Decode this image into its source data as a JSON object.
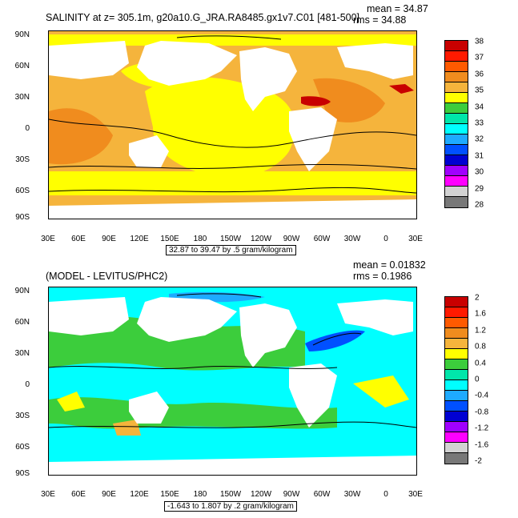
{
  "top": {
    "title": "SALINITY at z= 305.1m, g20a10.G_JRA.RA8485.gx1v7.C01 [481-500]",
    "mean": "mean = 34.87",
    "rms": "rms = 34.88",
    "caption": "32.87 to 39.47 by .5 gram/kilogram",
    "colorbar": {
      "labels": [
        "38",
        "37",
        "36",
        "35",
        "34",
        "33",
        "32",
        "31",
        "30",
        "29",
        "28"
      ],
      "colors": [
        "#c80000",
        "#ff1a00",
        "#ff5a00",
        "#f08c1e",
        "#f5b43c",
        "#ffff00",
        "#3ccd3c",
        "#00e6aa",
        "#00ffff",
        "#1eaaff",
        "#0050ff",
        "#0000d2",
        "#a000ff",
        "#ff00ff",
        "#d2d2d2",
        "#787878"
      ]
    }
  },
  "bottom": {
    "title": "(MODEL - LEVITUS/PHC2)",
    "mean": "mean = 0.01832",
    "rms": "rms = 0.1986",
    "caption": "-1.643 to 1.807 by .2 gram/kilogram",
    "colorbar": {
      "labels": [
        "2",
        "1.6",
        "1.2",
        "0.8",
        "0.4",
        "0",
        "-0.4",
        "-0.8",
        "-1.2",
        "-1.6",
        "-2"
      ],
      "colors": [
        "#c80000",
        "#ff1a00",
        "#ff5a00",
        "#f08c1e",
        "#f5b43c",
        "#ffff00",
        "#3ccd3c",
        "#00e6aa",
        "#00ffff",
        "#1eaaff",
        "#0050ff",
        "#0000d2",
        "#a000ff",
        "#ff00ff",
        "#d2d2d2",
        "#787878"
      ]
    }
  },
  "axes": {
    "lat_labels": [
      "90N",
      "60N",
      "30N",
      "0",
      "30S",
      "60S",
      "90S"
    ],
    "lon_labels": [
      "30E",
      "60E",
      "90E",
      "120E",
      "150E",
      "180",
      "150W",
      "120W",
      "90W",
      "60W",
      "30W",
      "0",
      "30E"
    ]
  }
}
